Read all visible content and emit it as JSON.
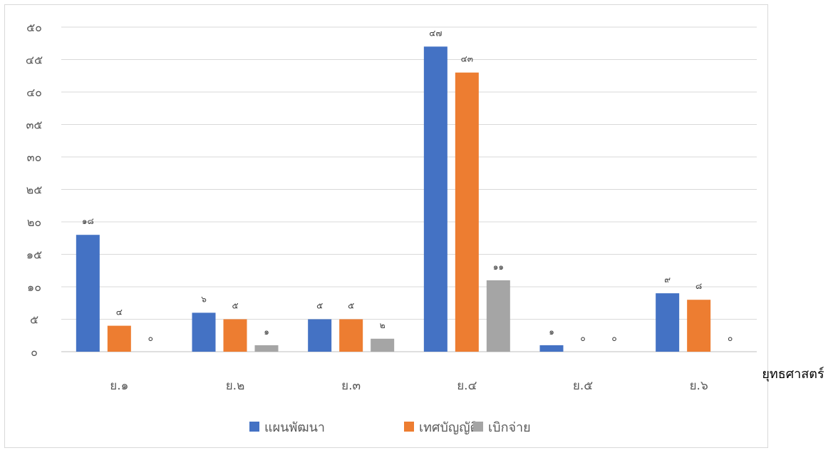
{
  "chart_data": {
    "type": "bar",
    "title": "",
    "xlabel": "ยุทธศาสตร์",
    "ylabel": "",
    "ylim": [
      0,
      50
    ],
    "yticks": [
      0,
      5,
      10,
      15,
      20,
      25,
      30,
      35,
      40,
      45,
      50
    ],
    "ytick_labels": [
      "๐",
      "๕",
      "๑๐",
      "๑๕",
      "๒๐",
      "๒๕",
      "๓๐",
      "๓๕",
      "๔๐",
      "๔๕",
      "๕๐"
    ],
    "grid": true,
    "legend_position": "bottom",
    "categories": [
      "ย.๑",
      "ย.๒",
      "ย.๓",
      "ย.๔",
      "ย.๕",
      "ย.๖"
    ],
    "series": [
      {
        "name": "แผนพัฒนา",
        "color": "#4472c4",
        "values": [
          18,
          6,
          5,
          47,
          1,
          9
        ],
        "labels": [
          "๑๘",
          "๖",
          "๕",
          "๔๗",
          "๑",
          "๙"
        ]
      },
      {
        "name": "เทศบัญญัติ",
        "color": "#ed7d31",
        "values": [
          4,
          5,
          5,
          43,
          0,
          8
        ],
        "labels": [
          "๔",
          "๕",
          "๕",
          "๔๓",
          "๐",
          "๘"
        ]
      },
      {
        "name": "เบิกจ่าย",
        "color": "#a5a5a5",
        "values": [
          0,
          1,
          2,
          11,
          0,
          0
        ],
        "labels": [
          "๐",
          "๑",
          "๒",
          "๑๑",
          "๐",
          "๐"
        ]
      }
    ]
  }
}
